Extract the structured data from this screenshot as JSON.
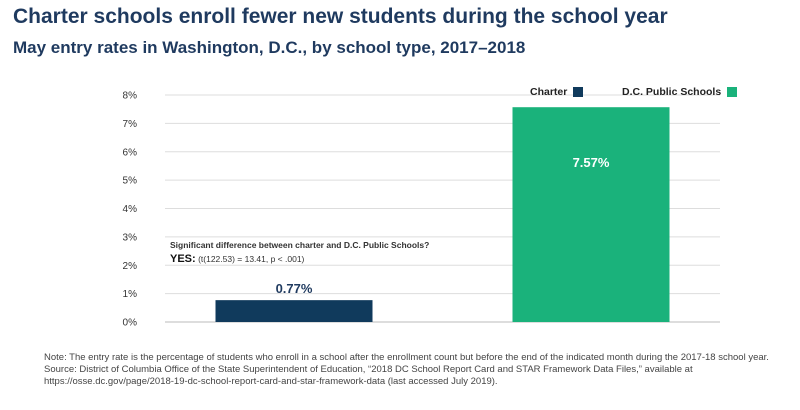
{
  "chart_data": {
    "type": "bar",
    "title": "Charter schools enroll fewer new students during the school year",
    "subtitle": "May entry rates in Washington, D.C., by school type, 2017–2018",
    "categories": [
      "Charter",
      "D.C. Public Schools"
    ],
    "values": [
      0.77,
      7.57
    ],
    "data_labels": [
      "0.77%",
      "7.57%"
    ],
    "colors": [
      "#103a5c",
      "#1ab27b"
    ],
    "ylim": [
      0,
      8
    ],
    "y_ticks": [
      "0%",
      "1%",
      "2%",
      "3%",
      "4%",
      "5%",
      "6%",
      "7%",
      "8%"
    ],
    "grid": true,
    "legend": {
      "position": "top-right",
      "entries": [
        {
          "label": "Charter",
          "color": "#103a5c"
        },
        {
          "label": "D.C. Public Schools",
          "color": "#1ab27b"
        }
      ]
    },
    "annotation": {
      "question": "Significant difference between charter and D.C. Public Schools?",
      "answer": "YES:",
      "stat": "(t(122.53) = 13.41, p < .001)"
    }
  },
  "footer": {
    "note": "Note: The entry rate is the percentage of students who enroll in a school after the enrollment count but before the end of the indicated month during the 2017-18 school year.",
    "source": "Source: District of Columbia Office of the State Superintendent of Education, “2018 DC School Report Card and STAR Framework Data Files,” available at https://osse.dc.gov/page/2018-19-dc-school-report-card-and-star-framework-data (last accessed July 2019)."
  }
}
